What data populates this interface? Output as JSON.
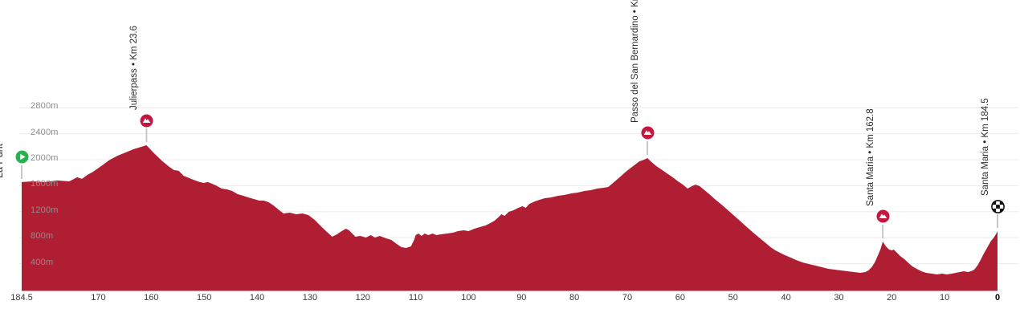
{
  "chart_data": {
    "type": "area",
    "title": "",
    "xlabel": "",
    "ylabel": "",
    "x_axis": {
      "unit": "km",
      "direction": "km_remaining_right_to_zero",
      "total_km": 184.5,
      "tick_values": [
        184.5,
        170,
        160,
        150,
        140,
        130,
        120,
        110,
        100,
        90,
        80,
        70,
        60,
        50,
        40,
        30,
        20,
        10,
        0
      ]
    },
    "y_axis": {
      "unit": "m",
      "min": 0,
      "max_visible": 2800,
      "tick_step": 400,
      "tick_values": [
        400,
        800,
        1200,
        1600,
        2000,
        2400,
        2800
      ],
      "tick_suffix": "m"
    },
    "grid": true,
    "legend": false,
    "markers": [
      {
        "id": "start",
        "label": "La Punt",
        "type": "start",
        "km": 0,
        "elevation_m": 1655
      },
      {
        "id": "julierpass",
        "label": "Julierpass • Km 23.6",
        "type": "summit",
        "km": 23.6,
        "elevation_m": 2222
      },
      {
        "id": "san-bernardino",
        "label": "Passo del San Bernardino • Km",
        "type": "summit",
        "km": 118.3,
        "elevation_m": 2025
      },
      {
        "id": "santa-maria-climb",
        "label": "Santa Maria • Km 162.8",
        "type": "summit",
        "km": 162.8,
        "elevation_m": 741
      },
      {
        "id": "finish",
        "label": "Santa Maria • Km 184.5",
        "type": "finish",
        "km": 184.5,
        "elevation_m": 901
      }
    ],
    "profile_points": [
      [
        0,
        1655
      ],
      [
        2.1,
        1667
      ],
      [
        4.4,
        1655
      ],
      [
        6.7,
        1680
      ],
      [
        9,
        1667
      ],
      [
        10.5,
        1730
      ],
      [
        11.4,
        1705
      ],
      [
        12.4,
        1765
      ],
      [
        13.5,
        1815
      ],
      [
        15,
        1900
      ],
      [
        16.5,
        1990
      ],
      [
        18.1,
        2060
      ],
      [
        19.6,
        2110
      ],
      [
        21.1,
        2160
      ],
      [
        22.6,
        2198
      ],
      [
        23.6,
        2222
      ],
      [
        24.9,
        2110
      ],
      [
        26.4,
        1990
      ],
      [
        27.9,
        1890
      ],
      [
        28.8,
        1840
      ],
      [
        29.7,
        1828
      ],
      [
        30.6,
        1753
      ],
      [
        31.7,
        1716
      ],
      [
        32.8,
        1680
      ],
      [
        33.7,
        1655
      ],
      [
        34.4,
        1642
      ],
      [
        35.2,
        1655
      ],
      [
        36,
        1630
      ],
      [
        36.7,
        1605
      ],
      [
        37.8,
        1556
      ],
      [
        38.8,
        1543
      ],
      [
        39.8,
        1519
      ],
      [
        40.8,
        1470
      ],
      [
        41.9,
        1444
      ],
      [
        42.8,
        1420
      ],
      [
        43.9,
        1395
      ],
      [
        44.9,
        1370
      ],
      [
        45.8,
        1370
      ],
      [
        46.7,
        1346
      ],
      [
        47.6,
        1296
      ],
      [
        48.7,
        1222
      ],
      [
        49.5,
        1173
      ],
      [
        50.7,
        1185
      ],
      [
        51.9,
        1160
      ],
      [
        53.1,
        1173
      ],
      [
        54.2,
        1148
      ],
      [
        55.4,
        1074
      ],
      [
        56.6,
        975
      ],
      [
        57.7,
        889
      ],
      [
        58.7,
        815
      ],
      [
        59.6,
        852
      ],
      [
        60.5,
        901
      ],
      [
        61.3,
        938
      ],
      [
        61.9,
        914
      ],
      [
        62.5,
        864
      ],
      [
        63.1,
        815
      ],
      [
        64,
        827
      ],
      [
        65.1,
        802
      ],
      [
        66,
        840
      ],
      [
        66.8,
        802
      ],
      [
        67.7,
        827
      ],
      [
        68.9,
        790
      ],
      [
        69.9,
        765
      ],
      [
        70.9,
        704
      ],
      [
        71.8,
        654
      ],
      [
        72.7,
        642
      ],
      [
        73.6,
        667
      ],
      [
        74.2,
        765
      ],
      [
        74.5,
        840
      ],
      [
        75,
        864
      ],
      [
        75.6,
        827
      ],
      [
        76.2,
        864
      ],
      [
        76.9,
        840
      ],
      [
        77.7,
        864
      ],
      [
        78.4,
        840
      ],
      [
        79.3,
        852
      ],
      [
        80.4,
        864
      ],
      [
        81.5,
        877
      ],
      [
        82.5,
        901
      ],
      [
        83.6,
        914
      ],
      [
        84.5,
        901
      ],
      [
        85.6,
        938
      ],
      [
        86.6,
        963
      ],
      [
        87.7,
        988
      ],
      [
        88.6,
        1025
      ],
      [
        89.4,
        1062
      ],
      [
        90.1,
        1111
      ],
      [
        90.7,
        1160
      ],
      [
        91.3,
        1136
      ],
      [
        92.1,
        1198
      ],
      [
        93,
        1222
      ],
      [
        93.9,
        1259
      ],
      [
        94.7,
        1284
      ],
      [
        95.3,
        1259
      ],
      [
        96,
        1321
      ],
      [
        97,
        1358
      ],
      [
        97.9,
        1383
      ],
      [
        98.9,
        1407
      ],
      [
        100.1,
        1420
      ],
      [
        101.4,
        1444
      ],
      [
        102.6,
        1457
      ],
      [
        103.9,
        1481
      ],
      [
        105.1,
        1494
      ],
      [
        106.4,
        1519
      ],
      [
        107.6,
        1531
      ],
      [
        108.8,
        1556
      ],
      [
        110,
        1568
      ],
      [
        110.9,
        1580
      ],
      [
        112,
        1655
      ],
      [
        113.2,
        1741
      ],
      [
        114.4,
        1827
      ],
      [
        115.6,
        1901
      ],
      [
        116.8,
        1975
      ],
      [
        117.7,
        2000
      ],
      [
        118.3,
        2025
      ],
      [
        119.1,
        1963
      ],
      [
        120,
        1901
      ],
      [
        120.9,
        1852
      ],
      [
        122,
        1790
      ],
      [
        123.1,
        1728
      ],
      [
        124.1,
        1667
      ],
      [
        125,
        1617
      ],
      [
        125.9,
        1556
      ],
      [
        126.7,
        1593
      ],
      [
        127.4,
        1617
      ],
      [
        128.2,
        1593
      ],
      [
        129.1,
        1531
      ],
      [
        130.2,
        1457
      ],
      [
        131.2,
        1383
      ],
      [
        132.5,
        1296
      ],
      [
        133.7,
        1210
      ],
      [
        134.9,
        1123
      ],
      [
        136.1,
        1037
      ],
      [
        137.3,
        950
      ],
      [
        138.5,
        864
      ],
      [
        139.6,
        790
      ],
      [
        140.7,
        716
      ],
      [
        141.6,
        654
      ],
      [
        142.5,
        605
      ],
      [
        143.4,
        568
      ],
      [
        144.3,
        531
      ],
      [
        145.4,
        494
      ],
      [
        146.4,
        457
      ],
      [
        147.6,
        420
      ],
      [
        148.8,
        395
      ],
      [
        150.1,
        370
      ],
      [
        151.3,
        346
      ],
      [
        152.5,
        321
      ],
      [
        153.7,
        309
      ],
      [
        154.9,
        296
      ],
      [
        156.1,
        284
      ],
      [
        157.3,
        272
      ],
      [
        158.6,
        259
      ],
      [
        159.5,
        272
      ],
      [
        160.1,
        296
      ],
      [
        160.7,
        346
      ],
      [
        161.3,
        420
      ],
      [
        161.9,
        531
      ],
      [
        162.4,
        630
      ],
      [
        162.8,
        741
      ],
      [
        163.4,
        667
      ],
      [
        164,
        617
      ],
      [
        164.5,
        605
      ],
      [
        164.9,
        617
      ],
      [
        165.5,
        568
      ],
      [
        166.1,
        519
      ],
      [
        166.9,
        469
      ],
      [
        167.7,
        407
      ],
      [
        168.4,
        358
      ],
      [
        169.2,
        321
      ],
      [
        170.1,
        284
      ],
      [
        171,
        259
      ],
      [
        172.1,
        247
      ],
      [
        173.1,
        235
      ],
      [
        174,
        247
      ],
      [
        174.9,
        235
      ],
      [
        175.9,
        247
      ],
      [
        176.6,
        259
      ],
      [
        177.4,
        272
      ],
      [
        178.1,
        284
      ],
      [
        178.9,
        272
      ],
      [
        179.5,
        284
      ],
      [
        180.1,
        309
      ],
      [
        180.7,
        370
      ],
      [
        181.3,
        457
      ],
      [
        181.9,
        556
      ],
      [
        182.6,
        654
      ],
      [
        183.2,
        741
      ],
      [
        183.8,
        802
      ],
      [
        184.2,
        852
      ],
      [
        184.5,
        901
      ]
    ],
    "colors": {
      "profile_fill": "#b01e33",
      "summit_icon": "#c41740",
      "start_icon": "#2eae52",
      "finish_icon": "#111111",
      "stem_line": "#c8c8c8",
      "gridline": "#ececec",
      "y_tick_text": "#8d8d8d",
      "x_tick_text": "#3a3a3a",
      "marker_text": "#2b2b2b",
      "background": "#ffffff"
    }
  }
}
